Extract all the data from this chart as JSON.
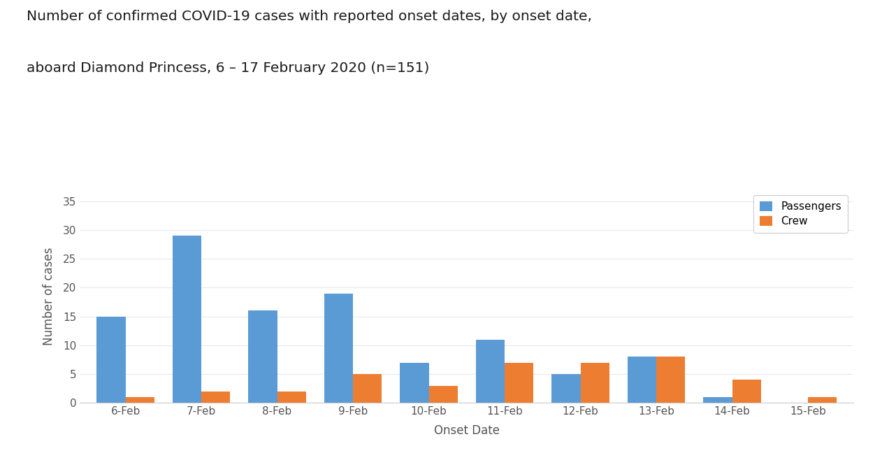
{
  "title_line1": "Number of confirmed COVID-19 cases with reported onset dates, by onset date,",
  "title_line2": "aboard Diamond Princess, 6 – 17 February 2020 (n=151)",
  "categories": [
    "6-Feb",
    "7-Feb",
    "8-Feb",
    "9-Feb",
    "10-Feb",
    "11-Feb",
    "12-Feb",
    "13-Feb",
    "14-Feb",
    "15-Feb"
  ],
  "passengers": [
    15,
    29,
    16,
    19,
    7,
    11,
    5,
    8,
    1,
    0
  ],
  "crew": [
    1,
    2,
    2,
    5,
    3,
    7,
    7,
    8,
    4,
    1
  ],
  "passenger_color": "#5B9BD5",
  "crew_color": "#ED7D31",
  "xlabel": "Onset Date",
  "ylabel": "Number of cases",
  "ylim": [
    0,
    37
  ],
  "yticks": [
    0,
    5,
    10,
    15,
    20,
    25,
    30,
    35
  ],
  "title_fontsize": 14.5,
  "axis_label_fontsize": 12,
  "tick_fontsize": 11,
  "legend_fontsize": 11,
  "bar_width": 0.38,
  "background_color": "#FFFFFF",
  "chart_background": "#FFFFFF",
  "box_color": "#CCCCCC",
  "grid_color": "#E8E8E8",
  "title_color": "#1A1A1A",
  "tick_color": "#555555",
  "label_color": "#555555"
}
